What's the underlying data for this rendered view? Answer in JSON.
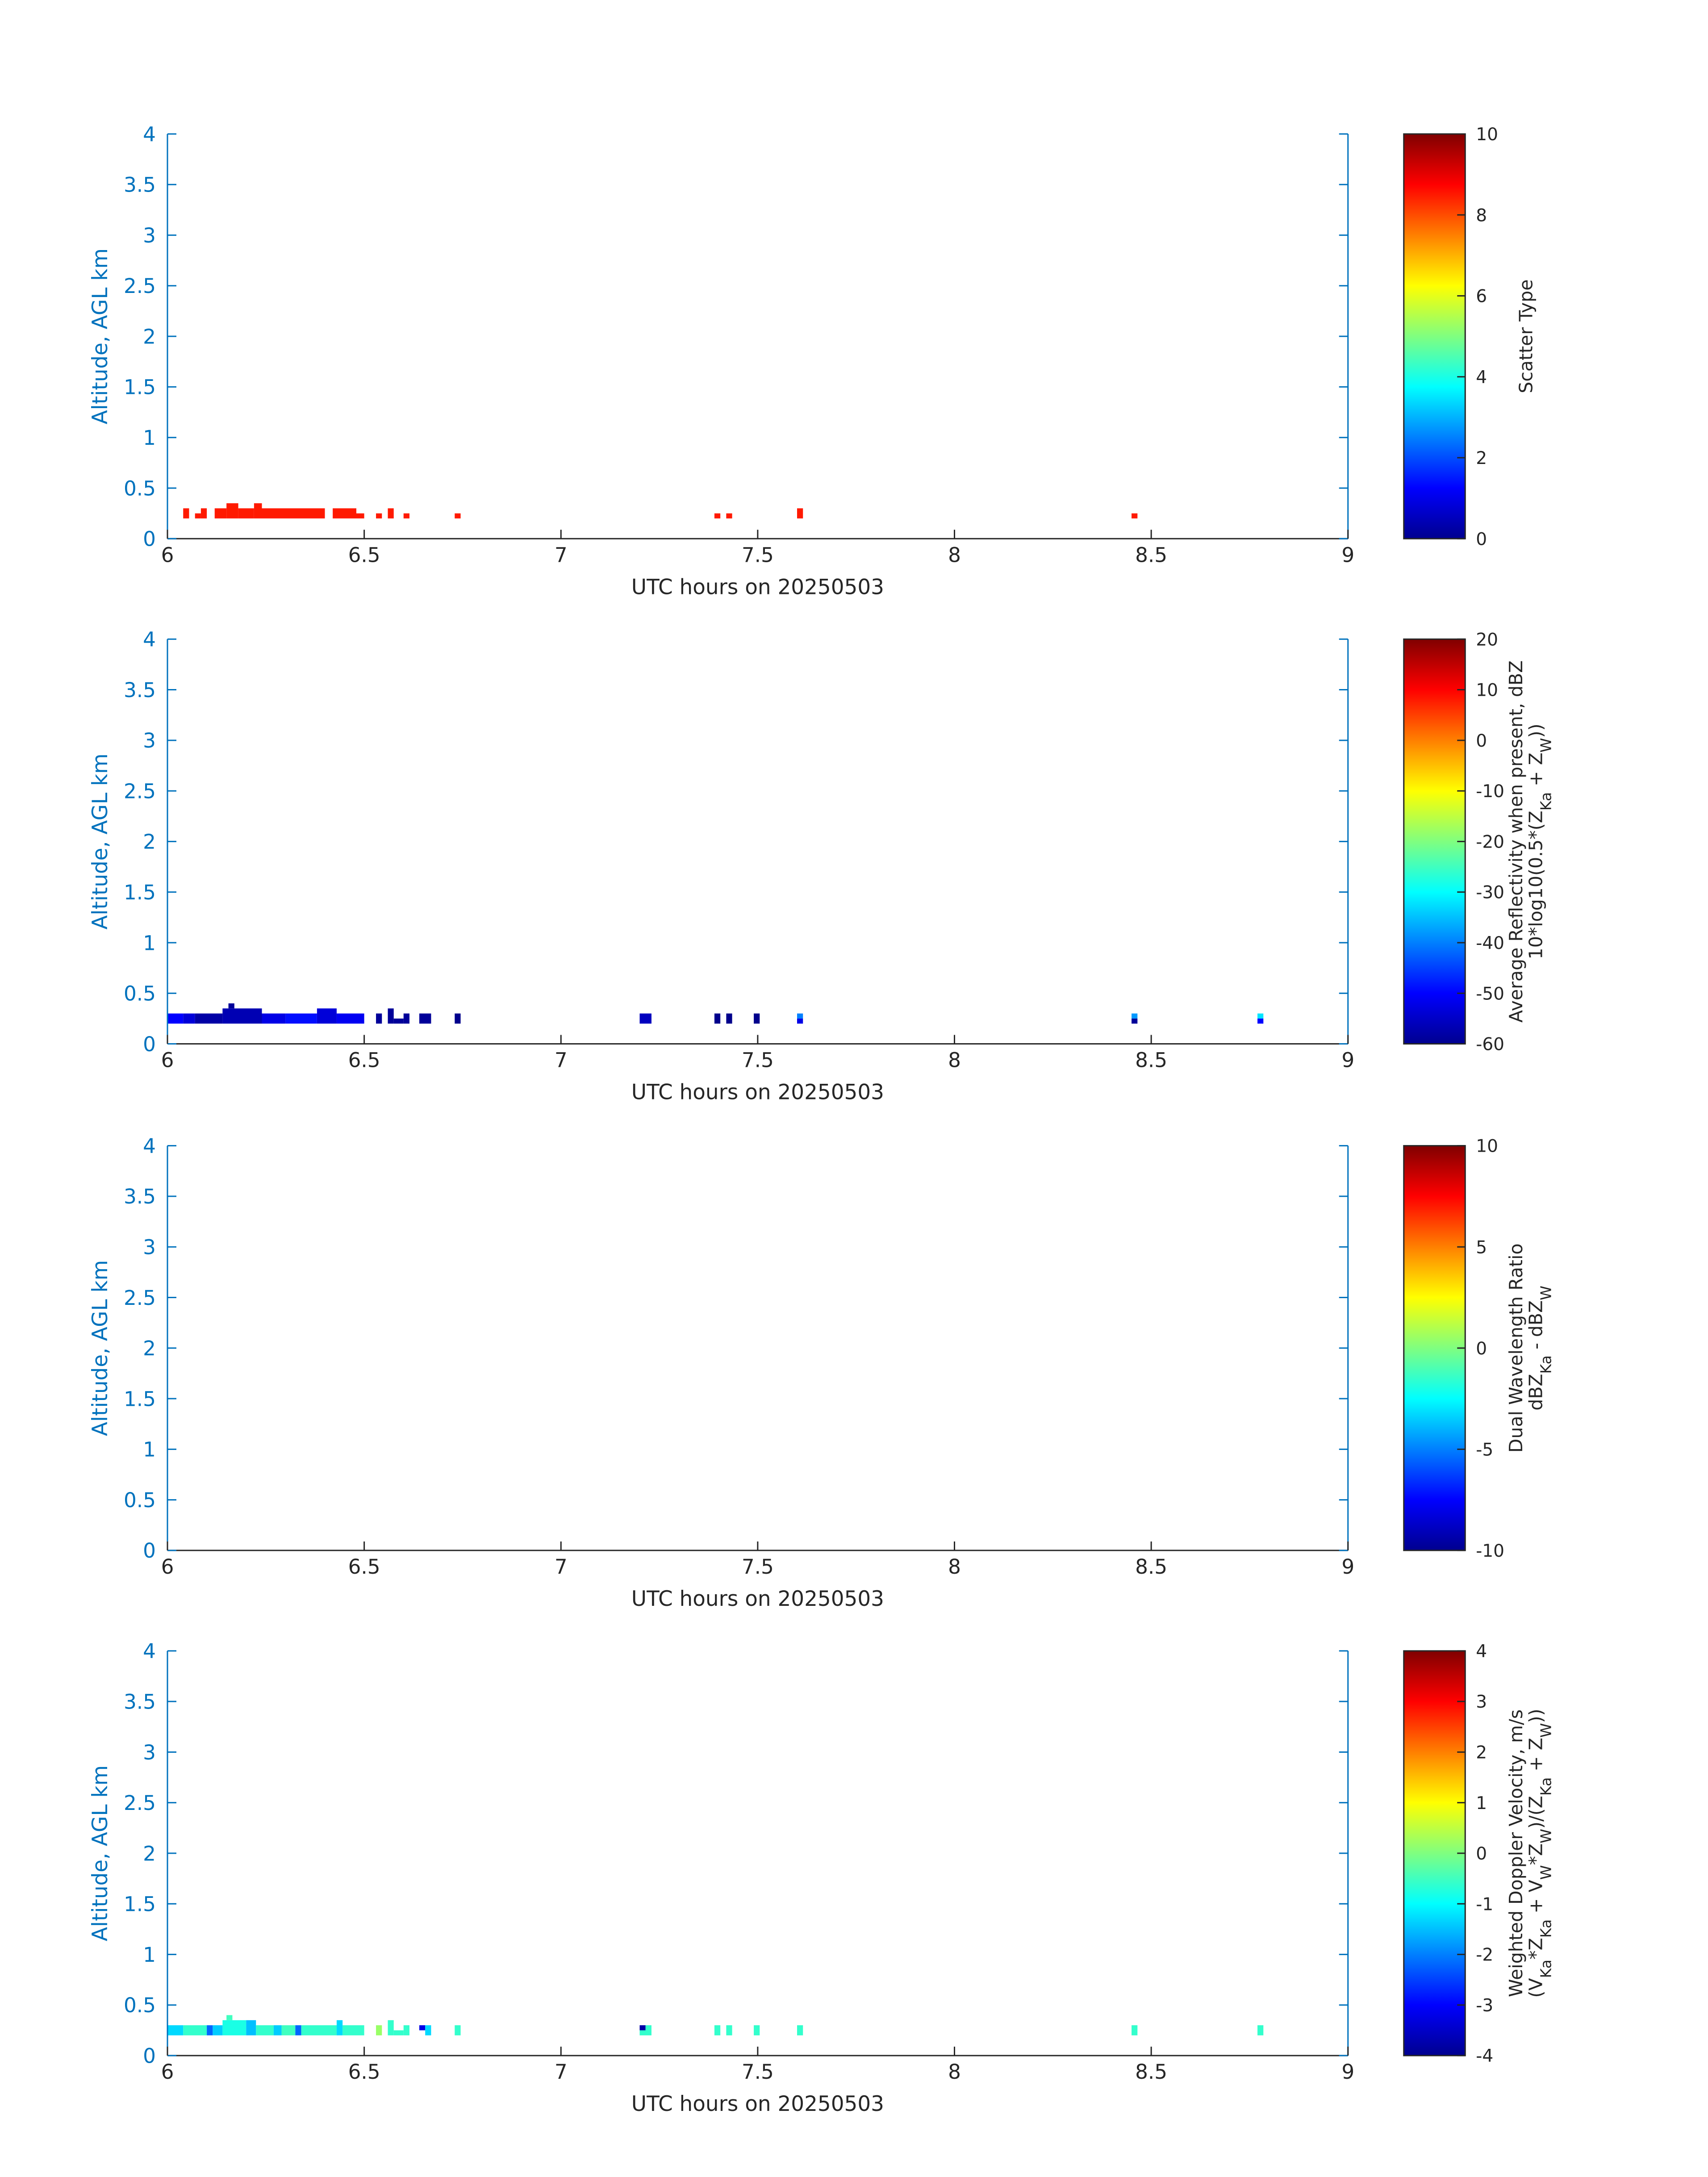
{
  "figure": {
    "xlabel": "UTC hours on 20250503",
    "ylabel": "Altitude, AGL km",
    "x_ticks": [
      6,
      6.5,
      7,
      7.5,
      8,
      8.5,
      9
    ],
    "x_tick_labels": [
      "6",
      "6.5",
      "7",
      "7.5",
      "8",
      "8.5",
      "9"
    ],
    "y_ticks": [
      0,
      0.5,
      1,
      1.5,
      2,
      2.5,
      3,
      3.5,
      4
    ],
    "y_tick_labels": [
      "0",
      "0.5",
      "1",
      "1.5",
      "2",
      "2.5",
      "3",
      "3.5",
      "4"
    ],
    "axis_color": "#0072BD",
    "colormap": "jet"
  },
  "chart_data": [
    {
      "type": "heatmap",
      "xlabel": "UTC hours on 20250503",
      "ylabel": "Altitude, AGL km",
      "xlim": [
        6,
        9
      ],
      "ylim": [
        0,
        4
      ],
      "colorbar": {
        "label_lines": [
          "Scatter Type"
        ],
        "clim": [
          0,
          10
        ],
        "ticks": [
          0,
          2,
          4,
          6,
          8,
          10
        ],
        "tick_labels": [
          "0",
          "2",
          "4",
          "6",
          "8",
          "10"
        ]
      },
      "cells": [
        {
          "t0": 6.04,
          "t1": 6.055,
          "z0": 0.2,
          "z1": 0.3,
          "v": 8.5
        },
        {
          "t0": 6.07,
          "t1": 6.085,
          "z0": 0.2,
          "z1": 0.25,
          "v": 8.5
        },
        {
          "t0": 6.085,
          "t1": 6.1,
          "z0": 0.2,
          "z1": 0.3,
          "v": 8.5
        },
        {
          "t0": 6.12,
          "t1": 6.15,
          "z0": 0.2,
          "z1": 0.3,
          "v": 8.5
        },
        {
          "t0": 6.15,
          "t1": 6.18,
          "z0": 0.2,
          "z1": 0.35,
          "v": 8.5
        },
        {
          "t0": 6.18,
          "t1": 6.22,
          "z0": 0.2,
          "z1": 0.3,
          "v": 8.5
        },
        {
          "t0": 6.22,
          "t1": 6.24,
          "z0": 0.2,
          "z1": 0.35,
          "v": 8.5
        },
        {
          "t0": 6.24,
          "t1": 6.4,
          "z0": 0.2,
          "z1": 0.3,
          "v": 8.5
        },
        {
          "t0": 6.42,
          "t1": 6.48,
          "z0": 0.2,
          "z1": 0.3,
          "v": 8.5
        },
        {
          "t0": 6.48,
          "t1": 6.5,
          "z0": 0.2,
          "z1": 0.25,
          "v": 8.5
        },
        {
          "t0": 6.53,
          "t1": 6.545,
          "z0": 0.2,
          "z1": 0.25,
          "v": 8.5
        },
        {
          "t0": 6.56,
          "t1": 6.575,
          "z0": 0.2,
          "z1": 0.3,
          "v": 8.5
        },
        {
          "t0": 6.6,
          "t1": 6.615,
          "z0": 0.2,
          "z1": 0.25,
          "v": 8.5
        },
        {
          "t0": 6.73,
          "t1": 6.745,
          "z0": 0.2,
          "z1": 0.25,
          "v": 8.5
        },
        {
          "t0": 7.39,
          "t1": 7.405,
          "z0": 0.2,
          "z1": 0.25,
          "v": 8.5
        },
        {
          "t0": 7.42,
          "t1": 7.435,
          "z0": 0.2,
          "z1": 0.25,
          "v": 8.5
        },
        {
          "t0": 7.6,
          "t1": 7.615,
          "z0": 0.2,
          "z1": 0.3,
          "v": 8.5
        },
        {
          "t0": 8.45,
          "t1": 8.465,
          "z0": 0.2,
          "z1": 0.25,
          "v": 8.5
        }
      ]
    },
    {
      "type": "heatmap",
      "xlabel": "UTC hours on 20250503",
      "ylabel": "Altitude, AGL km",
      "xlim": [
        6,
        9
      ],
      "ylim": [
        0,
        4
      ],
      "colorbar": {
        "label_lines": [
          "Average Reflectivity when present, dBZ",
          "10*log10(0.5*(Z Ka + Z W))"
        ],
        "clim": [
          -60,
          20
        ],
        "ticks": [
          -60,
          -50,
          -40,
          -30,
          -20,
          -10,
          0,
          10,
          20
        ],
        "tick_labels": [
          "-60",
          "-50",
          "-40",
          "-30",
          "-20",
          "-10",
          "0",
          "10",
          "20"
        ]
      },
      "cells": [
        {
          "t0": 6.0,
          "t1": 6.04,
          "z0": 0.2,
          "z1": 0.3,
          "v": -50
        },
        {
          "t0": 6.04,
          "t1": 6.07,
          "z0": 0.2,
          "z1": 0.3,
          "v": -53
        },
        {
          "t0": 6.07,
          "t1": 6.14,
          "z0": 0.2,
          "z1": 0.3,
          "v": -57
        },
        {
          "t0": 6.14,
          "t1": 6.24,
          "z0": 0.2,
          "z1": 0.35,
          "v": -56
        },
        {
          "t0": 6.155,
          "t1": 6.17,
          "z0": 0.35,
          "z1": 0.4,
          "v": -58
        },
        {
          "t0": 6.24,
          "t1": 6.3,
          "z0": 0.2,
          "z1": 0.3,
          "v": -52
        },
        {
          "t0": 6.3,
          "t1": 6.38,
          "z0": 0.2,
          "z1": 0.3,
          "v": -49
        },
        {
          "t0": 6.38,
          "t1": 6.43,
          "z0": 0.2,
          "z1": 0.35,
          "v": -53
        },
        {
          "t0": 6.43,
          "t1": 6.5,
          "z0": 0.2,
          "z1": 0.3,
          "v": -51
        },
        {
          "t0": 6.53,
          "t1": 6.545,
          "z0": 0.2,
          "z1": 0.3,
          "v": -58
        },
        {
          "t0": 6.56,
          "t1": 6.575,
          "z0": 0.2,
          "z1": 0.35,
          "v": -58
        },
        {
          "t0": 6.575,
          "t1": 6.6,
          "z0": 0.2,
          "z1": 0.25,
          "v": -58
        },
        {
          "t0": 6.6,
          "t1": 6.615,
          "z0": 0.2,
          "z1": 0.3,
          "v": -58
        },
        {
          "t0": 6.64,
          "t1": 6.67,
          "z0": 0.2,
          "z1": 0.3,
          "v": -58
        },
        {
          "t0": 6.73,
          "t1": 6.745,
          "z0": 0.2,
          "z1": 0.3,
          "v": -59
        },
        {
          "t0": 7.2,
          "t1": 7.23,
          "z0": 0.2,
          "z1": 0.3,
          "v": -55
        },
        {
          "t0": 7.39,
          "t1": 7.405,
          "z0": 0.2,
          "z1": 0.3,
          "v": -59
        },
        {
          "t0": 7.42,
          "t1": 7.435,
          "z0": 0.2,
          "z1": 0.3,
          "v": -59
        },
        {
          "t0": 7.49,
          "t1": 7.505,
          "z0": 0.2,
          "z1": 0.3,
          "v": -59
        },
        {
          "t0": 7.6,
          "t1": 7.615,
          "z0": 0.25,
          "z1": 0.3,
          "v": -40
        },
        {
          "t0": 7.6,
          "t1": 7.615,
          "z0": 0.2,
          "z1": 0.25,
          "v": -52
        },
        {
          "t0": 8.45,
          "t1": 8.465,
          "z0": 0.25,
          "z1": 0.3,
          "v": -38
        },
        {
          "t0": 8.45,
          "t1": 8.465,
          "z0": 0.2,
          "z1": 0.25,
          "v": -58
        },
        {
          "t0": 8.77,
          "t1": 8.785,
          "z0": 0.25,
          "z1": 0.3,
          "v": -32
        },
        {
          "t0": 8.77,
          "t1": 8.785,
          "z0": 0.2,
          "z1": 0.25,
          "v": -50
        }
      ]
    },
    {
      "type": "heatmap",
      "xlabel": "UTC hours on 20250503",
      "ylabel": "Altitude, AGL km",
      "xlim": [
        6,
        9
      ],
      "ylim": [
        0,
        4
      ],
      "colorbar": {
        "label_lines": [
          "Dual Wavelength Ratio",
          "dBZ Ka - dBZ W"
        ],
        "clim": [
          -10,
          10
        ],
        "ticks": [
          -10,
          -5,
          0,
          5,
          10
        ],
        "tick_labels": [
          "-10",
          "-5",
          "0",
          "5",
          "10"
        ]
      },
      "cells": []
    },
    {
      "type": "heatmap",
      "xlabel": "UTC hours on 20250503",
      "ylabel": "Altitude, AGL km",
      "xlim": [
        6,
        9
      ],
      "ylim": [
        0,
        4
      ],
      "colorbar": {
        "label_lines": [
          "Weighted Doppler Velocity, m/s",
          "(V Ka*Z Ka + V W*Z W)/(Z Ka + Z W))"
        ],
        "clim": [
          -4,
          4
        ],
        "ticks": [
          -4,
          -3,
          -2,
          -1,
          0,
          1,
          2,
          3,
          4
        ],
        "tick_labels": [
          "-4",
          "-3",
          "-2",
          "-1",
          "0",
          "1",
          "2",
          "3",
          "4"
        ]
      },
      "cells": [
        {
          "t0": 6.0,
          "t1": 6.04,
          "z0": 0.2,
          "z1": 0.3,
          "v": -1.3
        },
        {
          "t0": 6.04,
          "t1": 6.1,
          "z0": 0.2,
          "z1": 0.3,
          "v": -0.6
        },
        {
          "t0": 6.1,
          "t1": 6.115,
          "z0": 0.2,
          "z1": 0.3,
          "v": -2.2
        },
        {
          "t0": 6.115,
          "t1": 6.14,
          "z0": 0.2,
          "z1": 0.3,
          "v": -1.4
        },
        {
          "t0": 6.14,
          "t1": 6.2,
          "z0": 0.2,
          "z1": 0.35,
          "v": -0.8
        },
        {
          "t0": 6.15,
          "t1": 6.165,
          "z0": 0.35,
          "z1": 0.4,
          "v": -0.5
        },
        {
          "t0": 6.2,
          "t1": 6.225,
          "z0": 0.2,
          "z1": 0.35,
          "v": -1.5
        },
        {
          "t0": 6.225,
          "t1": 6.27,
          "z0": 0.2,
          "z1": 0.3,
          "v": -0.6
        },
        {
          "t0": 6.27,
          "t1": 6.29,
          "z0": 0.2,
          "z1": 0.3,
          "v": -1.4
        },
        {
          "t0": 6.29,
          "t1": 6.325,
          "z0": 0.2,
          "z1": 0.3,
          "v": -0.5
        },
        {
          "t0": 6.325,
          "t1": 6.34,
          "z0": 0.2,
          "z1": 0.3,
          "v": -2.2
        },
        {
          "t0": 6.34,
          "t1": 6.43,
          "z0": 0.2,
          "z1": 0.3,
          "v": -0.6
        },
        {
          "t0": 6.43,
          "t1": 6.445,
          "z0": 0.2,
          "z1": 0.35,
          "v": -1.3
        },
        {
          "t0": 6.445,
          "t1": 6.5,
          "z0": 0.2,
          "z1": 0.3,
          "v": -0.6
        },
        {
          "t0": 6.53,
          "t1": 6.545,
          "z0": 0.2,
          "z1": 0.3,
          "v": 0.2
        },
        {
          "t0": 6.56,
          "t1": 6.575,
          "z0": 0.2,
          "z1": 0.35,
          "v": -0.6
        },
        {
          "t0": 6.575,
          "t1": 6.6,
          "z0": 0.2,
          "z1": 0.25,
          "v": -0.6
        },
        {
          "t0": 6.6,
          "t1": 6.615,
          "z0": 0.2,
          "z1": 0.3,
          "v": -0.6
        },
        {
          "t0": 6.64,
          "t1": 6.655,
          "z0": 0.25,
          "z1": 0.3,
          "v": -3.2
        },
        {
          "t0": 6.655,
          "t1": 6.67,
          "z0": 0.2,
          "z1": 0.3,
          "v": -1.3
        },
        {
          "t0": 6.73,
          "t1": 6.745,
          "z0": 0.2,
          "z1": 0.3,
          "v": -0.6
        },
        {
          "t0": 7.2,
          "t1": 7.215,
          "z0": 0.25,
          "z1": 0.3,
          "v": -3.7
        },
        {
          "t0": 7.2,
          "t1": 7.23,
          "z0": 0.2,
          "z1": 0.25,
          "v": -0.6
        },
        {
          "t0": 7.215,
          "t1": 7.23,
          "z0": 0.25,
          "z1": 0.3,
          "v": -0.6
        },
        {
          "t0": 7.39,
          "t1": 7.405,
          "z0": 0.2,
          "z1": 0.3,
          "v": -0.6
        },
        {
          "t0": 7.42,
          "t1": 7.435,
          "z0": 0.2,
          "z1": 0.3,
          "v": -0.6
        },
        {
          "t0": 7.49,
          "t1": 7.505,
          "z0": 0.2,
          "z1": 0.3,
          "v": -0.6
        },
        {
          "t0": 7.6,
          "t1": 7.615,
          "z0": 0.2,
          "z1": 0.3,
          "v": -0.6
        },
        {
          "t0": 8.45,
          "t1": 8.465,
          "z0": 0.2,
          "z1": 0.3,
          "v": -0.6
        },
        {
          "t0": 8.77,
          "t1": 8.785,
          "z0": 0.2,
          "z1": 0.3,
          "v": -0.6
        }
      ]
    }
  ]
}
